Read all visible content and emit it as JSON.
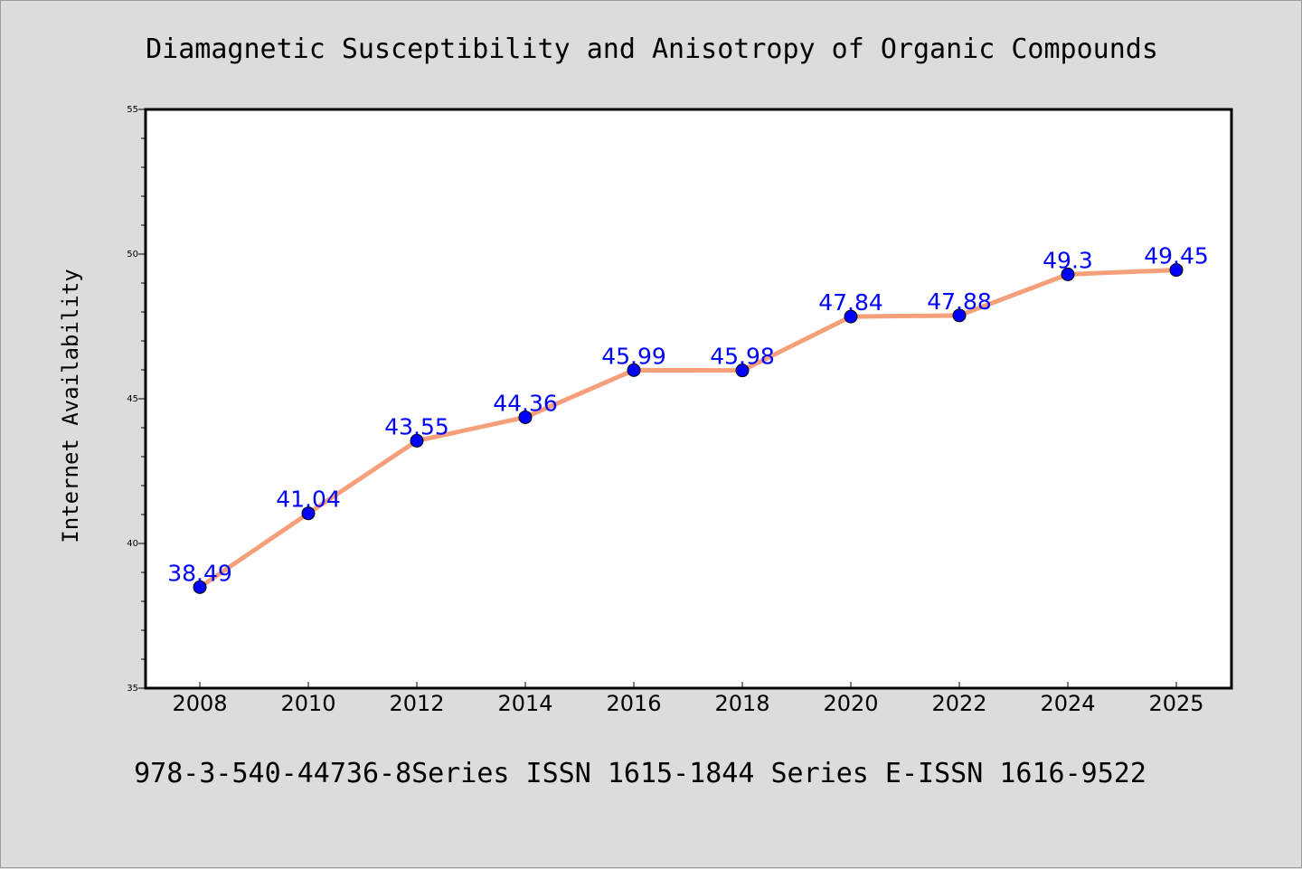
{
  "chart_data": {
    "type": "line",
    "title": "Diamagnetic Susceptibility and Anisotropy of Organic Compounds",
    "xlabel": "",
    "ylabel": "Internet Availability",
    "categories": [
      "2008",
      "2010",
      "2012",
      "2014",
      "2016",
      "2018",
      "2020",
      "2022",
      "2024",
      "2025"
    ],
    "series": [
      {
        "values": [
          38.49,
          41.04,
          43.55,
          44.36,
          45.99,
          45.98,
          47.84,
          47.88,
          49.3,
          49.45
        ],
        "labels": [
          "38.49",
          "41.04",
          "43.55",
          "44.36",
          "45.99",
          "45.98",
          "47.84",
          "47.88",
          "49.3",
          "49.45"
        ]
      }
    ],
    "ylim": [
      35,
      55
    ],
    "yticks": [
      "35",
      "40",
      "45",
      "50",
      "55"
    ],
    "grid": false,
    "line_color": "#f5a07a",
    "marker_color": "#0000ff",
    "label_color": "#0000ff"
  },
  "footer": {
    "text": "978-3-540-44736-8Series ISSN 1615-1844 Series E-ISSN 1616-9522"
  }
}
